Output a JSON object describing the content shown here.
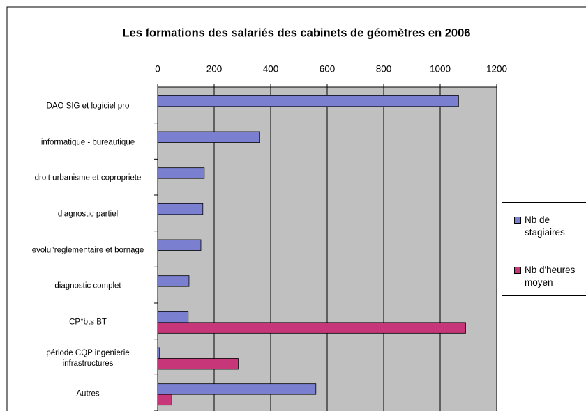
{
  "chart_data": {
    "type": "bar",
    "orientation": "horizontal",
    "title": "Les formations des salariés des cabinets de géomètres en 2006",
    "categories": [
      "DAO SIG et logiciel pro",
      "informatique - bureautique",
      "droit urbanisme et copropriete",
      "diagnostic partiel",
      "evolu°reglementaire et bornage",
      "diagnostic complet",
      "CP°bts BT",
      "période CQP ingenierie infrastructures",
      "Autres"
    ],
    "series": [
      {
        "name": "Nb de stagiaires",
        "color": "#7b7fcf",
        "values": [
          1065,
          360,
          165,
          160,
          153,
          111,
          108,
          7,
          560
        ]
      },
      {
        "name": "Nb d'heures moyen",
        "color": "#c8367a",
        "values": [
          null,
          null,
          null,
          null,
          null,
          null,
          1090,
          285,
          50
        ]
      }
    ],
    "xlim": [
      0,
      1200
    ],
    "xticks": [
      0,
      200,
      400,
      600,
      800,
      1000,
      1200
    ],
    "grid": true,
    "legend": "right"
  }
}
